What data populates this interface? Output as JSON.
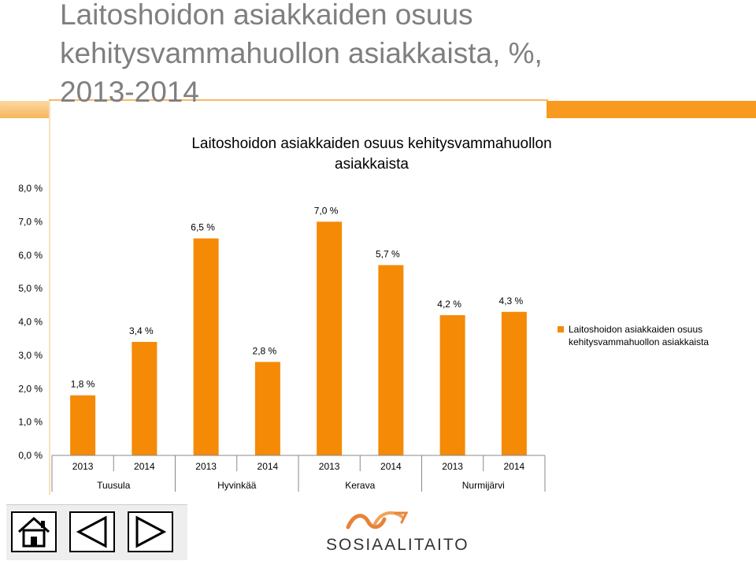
{
  "slide": {
    "title": "Laitoshoidon asiakkaiden osuus kehitysvammahuollon asiakkaista, %, 2013-2014"
  },
  "logo": {
    "text": "SOSIAALITAITO"
  },
  "colors": {
    "bar": "#f58a07",
    "accent": "#f79a1f"
  },
  "nav_icons": [
    "home-icon",
    "previous-icon",
    "next-icon"
  ],
  "chart_data": {
    "type": "bar",
    "title": "Laitoshoidon asiakkaiden osuus kehitysvammahuollon asiakkaista",
    "categories": [
      "2013",
      "2014",
      "2013",
      "2014",
      "2013",
      "2014",
      "2013",
      "2014"
    ],
    "groups": [
      "Tuusula",
      "Hyvinkää",
      "Kerava",
      "Nurmijärvi"
    ],
    "series": [
      {
        "name": "Laitoshoidon asiakkaiden osuus kehitysvammahuollon asiakkaista",
        "values": [
          1.8,
          3.4,
          6.5,
          2.8,
          7.0,
          5.7,
          4.2,
          4.3
        ],
        "labels": [
          "1,8 %",
          "3,4 %",
          "6,5 %",
          "2,8 %",
          "7,0 %",
          "5,7 %",
          "4,2 %",
          "4,3 %"
        ]
      }
    ],
    "yticks": [
      "0,0 %",
      "1,0 %",
      "2,0 %",
      "3,0 %",
      "4,0 %",
      "5,0 %",
      "6,0 %",
      "7,0 %",
      "8,0 %"
    ],
    "ylim": [
      0,
      8
    ],
    "grid": false,
    "legend_position": "right"
  }
}
